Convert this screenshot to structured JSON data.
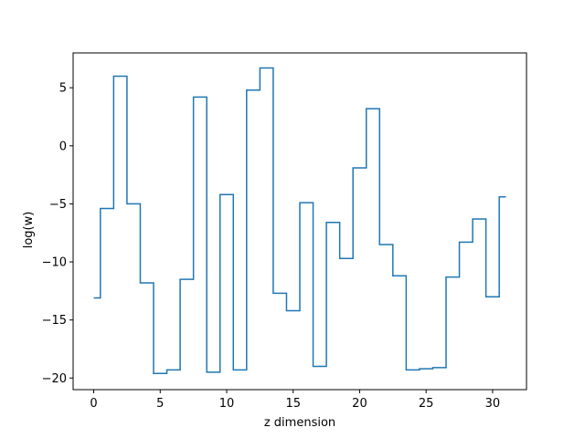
{
  "chart_data": {
    "type": "line",
    "drawstyle": "steps-mid",
    "title": "",
    "xlabel": "z dimension",
    "ylabel": "log(w)",
    "xlim": [
      -1.55,
      32.55
    ],
    "ylim": [
      -21.0,
      8.0
    ],
    "xticks": [
      0,
      5,
      10,
      15,
      20,
      25,
      30
    ],
    "yticks": [
      -20,
      -15,
      -10,
      -5,
      0,
      5
    ],
    "grid": false,
    "legend": "none",
    "series": [
      {
        "color": "#1f77b4",
        "x": [
          0,
          1,
          2,
          3,
          4,
          5,
          6,
          7,
          8,
          9,
          10,
          11,
          12,
          13,
          14,
          15,
          16,
          17,
          18,
          19,
          20,
          21,
          22,
          23,
          24,
          25,
          26,
          27,
          28,
          29,
          30,
          31
        ],
        "y": [
          -13.1,
          -5.4,
          6.0,
          -5.0,
          -11.8,
          -19.6,
          -19.3,
          -11.5,
          4.2,
          -19.5,
          -4.2,
          -19.3,
          4.8,
          6.7,
          -12.7,
          -14.2,
          -4.9,
          -19.0,
          -6.6,
          -9.7,
          -1.9,
          3.2,
          -8.5,
          -11.2,
          -19.3,
          -19.2,
          -19.1,
          -11.3,
          -8.3,
          -6.3,
          -13.0,
          -4.4
        ]
      }
    ]
  }
}
